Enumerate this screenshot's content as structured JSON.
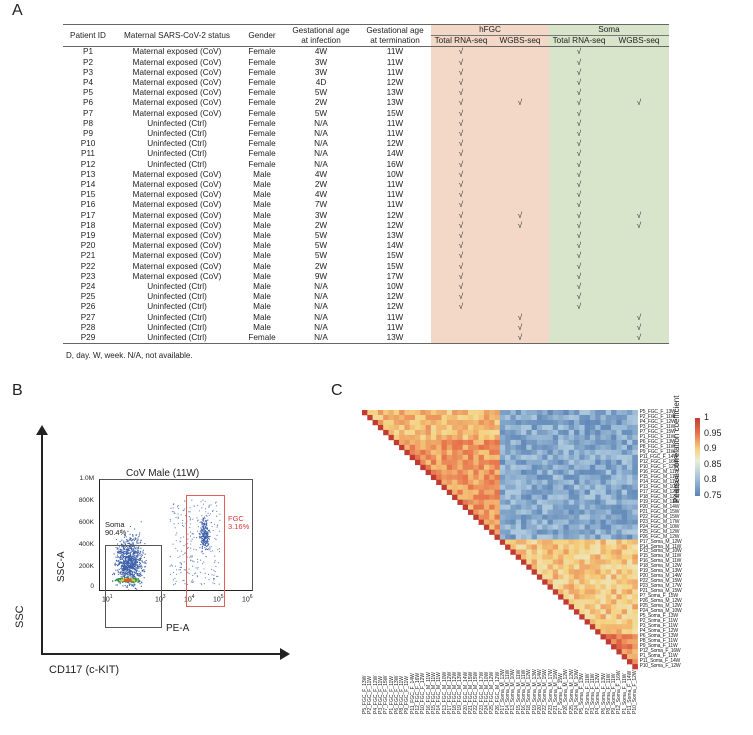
{
  "panels": {
    "a": "A",
    "b": "B",
    "c": "C"
  },
  "table": {
    "headers": {
      "patient_id": "Patient ID",
      "status": "Maternal SARS-CoV-2 status",
      "gender": "Gender",
      "ga_infection": [
        "Gestational age",
        "at infection"
      ],
      "ga_termination": [
        "Gestational age",
        "at termination"
      ],
      "group_hfgc": "hFGC",
      "group_soma": "Soma",
      "total_rna": "Total RNA-seq",
      "wgbs": "WGBS-seq"
    },
    "check_symbol": "√",
    "colors": {
      "hfgc_bg": "#f3d8c7",
      "soma_bg": "#d9e5cb"
    },
    "rows": [
      {
        "id": "P1",
        "status": "Maternal exposed (CoV)",
        "gender": "Female",
        "ga_inf": "4W",
        "ga_term": "11W",
        "fgc_rna": true,
        "fgc_wgbs": false,
        "soma_rna": true,
        "soma_wgbs": false
      },
      {
        "id": "P2",
        "status": "Maternal exposed (CoV)",
        "gender": "Female",
        "ga_inf": "3W",
        "ga_term": "11W",
        "fgc_rna": true,
        "fgc_wgbs": false,
        "soma_rna": true,
        "soma_wgbs": false
      },
      {
        "id": "P3",
        "status": "Maternal exposed (CoV)",
        "gender": "Female",
        "ga_inf": "3W",
        "ga_term": "11W",
        "fgc_rna": true,
        "fgc_wgbs": false,
        "soma_rna": true,
        "soma_wgbs": false
      },
      {
        "id": "P4",
        "status": "Maternal exposed (CoV)",
        "gender": "Female",
        "ga_inf": "4D",
        "ga_term": "12W",
        "fgc_rna": true,
        "fgc_wgbs": false,
        "soma_rna": true,
        "soma_wgbs": false
      },
      {
        "id": "P5",
        "status": "Maternal exposed (CoV)",
        "gender": "Female",
        "ga_inf": "5W",
        "ga_term": "13W",
        "fgc_rna": true,
        "fgc_wgbs": false,
        "soma_rna": true,
        "soma_wgbs": false
      },
      {
        "id": "P6",
        "status": "Maternal exposed (CoV)",
        "gender": "Female",
        "ga_inf": "2W",
        "ga_term": "13W",
        "fgc_rna": true,
        "fgc_wgbs": true,
        "soma_rna": true,
        "soma_wgbs": true
      },
      {
        "id": "P7",
        "status": "Maternal exposed (CoV)",
        "gender": "Female",
        "ga_inf": "5W",
        "ga_term": "15W",
        "fgc_rna": true,
        "fgc_wgbs": false,
        "soma_rna": true,
        "soma_wgbs": false
      },
      {
        "id": "P8",
        "status": "Uninfected (Ctrl)",
        "gender": "Female",
        "ga_inf": "N/A",
        "ga_term": "11W",
        "fgc_rna": true,
        "fgc_wgbs": false,
        "soma_rna": true,
        "soma_wgbs": false
      },
      {
        "id": "P9",
        "status": "Uninfected (Ctrl)",
        "gender": "Female",
        "ga_inf": "N/A",
        "ga_term": "11W",
        "fgc_rna": true,
        "fgc_wgbs": false,
        "soma_rna": true,
        "soma_wgbs": false
      },
      {
        "id": "P10",
        "status": "Uninfected (Ctrl)",
        "gender": "Female",
        "ga_inf": "N/A",
        "ga_term": "12W",
        "fgc_rna": true,
        "fgc_wgbs": false,
        "soma_rna": true,
        "soma_wgbs": false
      },
      {
        "id": "P11",
        "status": "Uninfected (Ctrl)",
        "gender": "Female",
        "ga_inf": "N/A",
        "ga_term": "14W",
        "fgc_rna": true,
        "fgc_wgbs": false,
        "soma_rna": true,
        "soma_wgbs": false
      },
      {
        "id": "P12",
        "status": "Uninfected (Ctrl)",
        "gender": "Female",
        "ga_inf": "N/A",
        "ga_term": "16W",
        "fgc_rna": true,
        "fgc_wgbs": false,
        "soma_rna": true,
        "soma_wgbs": false
      },
      {
        "id": "P13",
        "status": "Maternal exposed (CoV)",
        "gender": "Male",
        "ga_inf": "4W",
        "ga_term": "10W",
        "fgc_rna": true,
        "fgc_wgbs": false,
        "soma_rna": true,
        "soma_wgbs": false
      },
      {
        "id": "P14",
        "status": "Maternal exposed (CoV)",
        "gender": "Male",
        "ga_inf": "2W",
        "ga_term": "11W",
        "fgc_rna": true,
        "fgc_wgbs": false,
        "soma_rna": true,
        "soma_wgbs": false
      },
      {
        "id": "P15",
        "status": "Maternal exposed (CoV)",
        "gender": "Male",
        "ga_inf": "4W",
        "ga_term": "11W",
        "fgc_rna": true,
        "fgc_wgbs": false,
        "soma_rna": true,
        "soma_wgbs": false
      },
      {
        "id": "P16",
        "status": "Maternal exposed (CoV)",
        "gender": "Male",
        "ga_inf": "7W",
        "ga_term": "11W",
        "fgc_rna": true,
        "fgc_wgbs": false,
        "soma_rna": true,
        "soma_wgbs": false
      },
      {
        "id": "P17",
        "status": "Maternal exposed (CoV)",
        "gender": "Male",
        "ga_inf": "3W",
        "ga_term": "12W",
        "fgc_rna": true,
        "fgc_wgbs": true,
        "soma_rna": true,
        "soma_wgbs": true
      },
      {
        "id": "P18",
        "status": "Maternal exposed (CoV)",
        "gender": "Male",
        "ga_inf": "2W",
        "ga_term": "12W",
        "fgc_rna": true,
        "fgc_wgbs": true,
        "soma_rna": true,
        "soma_wgbs": true
      },
      {
        "id": "P19",
        "status": "Maternal exposed (CoV)",
        "gender": "Male",
        "ga_inf": "5W",
        "ga_term": "13W",
        "fgc_rna": true,
        "fgc_wgbs": false,
        "soma_rna": true,
        "soma_wgbs": false
      },
      {
        "id": "P20",
        "status": "Maternal exposed (CoV)",
        "gender": "Male",
        "ga_inf": "5W",
        "ga_term": "14W",
        "fgc_rna": true,
        "fgc_wgbs": false,
        "soma_rna": true,
        "soma_wgbs": false
      },
      {
        "id": "P21",
        "status": "Maternal exposed (CoV)",
        "gender": "Male",
        "ga_inf": "5W",
        "ga_term": "15W",
        "fgc_rna": true,
        "fgc_wgbs": false,
        "soma_rna": true,
        "soma_wgbs": false
      },
      {
        "id": "P22",
        "status": "Maternal exposed (CoV)",
        "gender": "Male",
        "ga_inf": "2W",
        "ga_term": "15W",
        "fgc_rna": true,
        "fgc_wgbs": false,
        "soma_rna": true,
        "soma_wgbs": false
      },
      {
        "id": "P23",
        "status": "Maternal exposed (CoV)",
        "gender": "Male",
        "ga_inf": "9W",
        "ga_term": "17W",
        "fgc_rna": true,
        "fgc_wgbs": false,
        "soma_rna": true,
        "soma_wgbs": false
      },
      {
        "id": "P24",
        "status": "Uninfected (Ctrl)",
        "gender": "Male",
        "ga_inf": "N/A",
        "ga_term": "10W",
        "fgc_rna": true,
        "fgc_wgbs": false,
        "soma_rna": true,
        "soma_wgbs": false
      },
      {
        "id": "P25",
        "status": "Uninfected (Ctrl)",
        "gender": "Male",
        "ga_inf": "N/A",
        "ga_term": "12W",
        "fgc_rna": true,
        "fgc_wgbs": false,
        "soma_rna": true,
        "soma_wgbs": false
      },
      {
        "id": "P26",
        "status": "Uninfected (Ctrl)",
        "gender": "Male",
        "ga_inf": "N/A",
        "ga_term": "12W",
        "fgc_rna": true,
        "fgc_wgbs": false,
        "soma_rna": true,
        "soma_wgbs": false
      },
      {
        "id": "P27",
        "status": "Uninfected (Ctrl)",
        "gender": "Male",
        "ga_inf": "N/A",
        "ga_term": "11W",
        "fgc_rna": false,
        "fgc_wgbs": true,
        "soma_rna": false,
        "soma_wgbs": true
      },
      {
        "id": "P28",
        "status": "Uninfected (Ctrl)",
        "gender": "Male",
        "ga_inf": "N/A",
        "ga_term": "11W",
        "fgc_rna": false,
        "fgc_wgbs": true,
        "soma_rna": false,
        "soma_wgbs": true
      },
      {
        "id": "P29",
        "status": "Uninfected (Ctrl)",
        "gender": "Female",
        "ga_inf": "N/A",
        "ga_term": "13W",
        "fgc_rna": false,
        "fgc_wgbs": true,
        "soma_rna": false,
        "soma_wgbs": true
      }
    ],
    "footnote": "D, day. W, week. N/A, not available."
  },
  "flow": {
    "title": "CoV Male (11W)",
    "outer_y_label": "SSC",
    "outer_x_label": "CD117 (c-KIT)",
    "y_label": "SSC-A",
    "x_label": "PE-A",
    "y_ticks": [
      "1.0M",
      "800K",
      "600K",
      "400K",
      "200K",
      "0"
    ],
    "x_ticks": [
      "10",
      "10",
      "10",
      "10",
      "10"
    ],
    "x_tick_exps": [
      "1",
      "3",
      "4",
      "5",
      "6"
    ],
    "gates": [
      {
        "name": "Soma",
        "percent": "90.4%",
        "color": "#555555"
      },
      {
        "name": "FGC",
        "percent": "3.16%",
        "color": "#d43b3b"
      }
    ]
  },
  "chart_data": {
    "type": "heatmap",
    "title": "",
    "colorbar_title": "Pearson correlation coefficient",
    "colorbar_ticks": [
      "1",
      "0.95",
      "0.9",
      "0.85",
      "0.8",
      "0.75"
    ],
    "value_range": [
      0.75,
      1.0
    ],
    "layout": "lower-right triangle, samples clustered into FGC block and Soma block",
    "blocks": [
      {
        "group": "FGC",
        "n_samples": 26,
        "within_corr_approx": 0.93,
        "example_labels": [
          "P5_FGC_F_13W",
          "P2_FGC_F_11W",
          "P17_FGC_M_12W",
          "P10_FGC_F_12W",
          "P13_FGC_M_10W",
          "P24_FGC_M_10W"
        ]
      },
      {
        "group": "Soma",
        "n_samples": 26,
        "within_corr_approx": 0.9,
        "example_labels": [
          "P17_Soma_M_12W",
          "P21_Soma_M_15W",
          "P7_Soma_F_15W",
          "P1_Soma_F_11W",
          "P10_Soma_F_12W"
        ]
      }
    ],
    "between_block_corr_approx": 0.78,
    "row_labels": [
      "P5_FGC_F_13W",
      "P2_FGC_F_11W",
      "P4_FGC_F_12W",
      "P3_FGC_F_11W",
      "P7_FGC_F_15W",
      "P1_FGC_F_11W",
      "P6_FGC_F_13W",
      "P8_FGC_F_11W",
      "P9_FGC_F_11W",
      "P11_FGC_F_14W",
      "P12_FGC_F_16W",
      "P10_FGC_F_12W",
      "P16_FGC_M_11W",
      "P15_FGC_M_11W",
      "P14_FGC_M_11W",
      "P13_FGC_M_10W",
      "P17_FGC_M_12W",
      "P18_FGC_M_12W",
      "P19_FGC_M_13W",
      "P20_FGC_M_14W",
      "P21_FGC_M_15W",
      "P22_FGC_M_15W",
      "P23_FGC_M_17W",
      "P24_FGC_M_10W",
      "P25_FGC_M_12W",
      "P26_FGC_M_12W",
      "P17_Soma_M_12W",
      "P14_Soma_M_11W",
      "P13_Soma_M_10W",
      "P15_Soma_M_11W",
      "P16_Soma_M_11W",
      "P18_Soma_M_12W",
      "P19_Soma_M_13W",
      "P20_Soma_M_14W",
      "P22_Soma_M_15W",
      "P23_Soma_M_17W",
      "P21_Soma_M_15W",
      "P7_Soma_F_15W",
      "P26_Soma_M_12W",
      "P25_Soma_M_12W",
      "P24_Soma_M_10W",
      "P5_Soma_F_13W",
      "P2_Soma_F_11W",
      "P3_Soma_F_11W",
      "P4_Soma_F_12W",
      "P6_Soma_F_13W",
      "P8_Soma_F_11W",
      "P9_Soma_F_11W",
      "P12_Soma_F_16W",
      "P1_Soma_F_11W",
      "P11_Soma_F_14W",
      "P10_Soma_F_12W"
    ]
  }
}
